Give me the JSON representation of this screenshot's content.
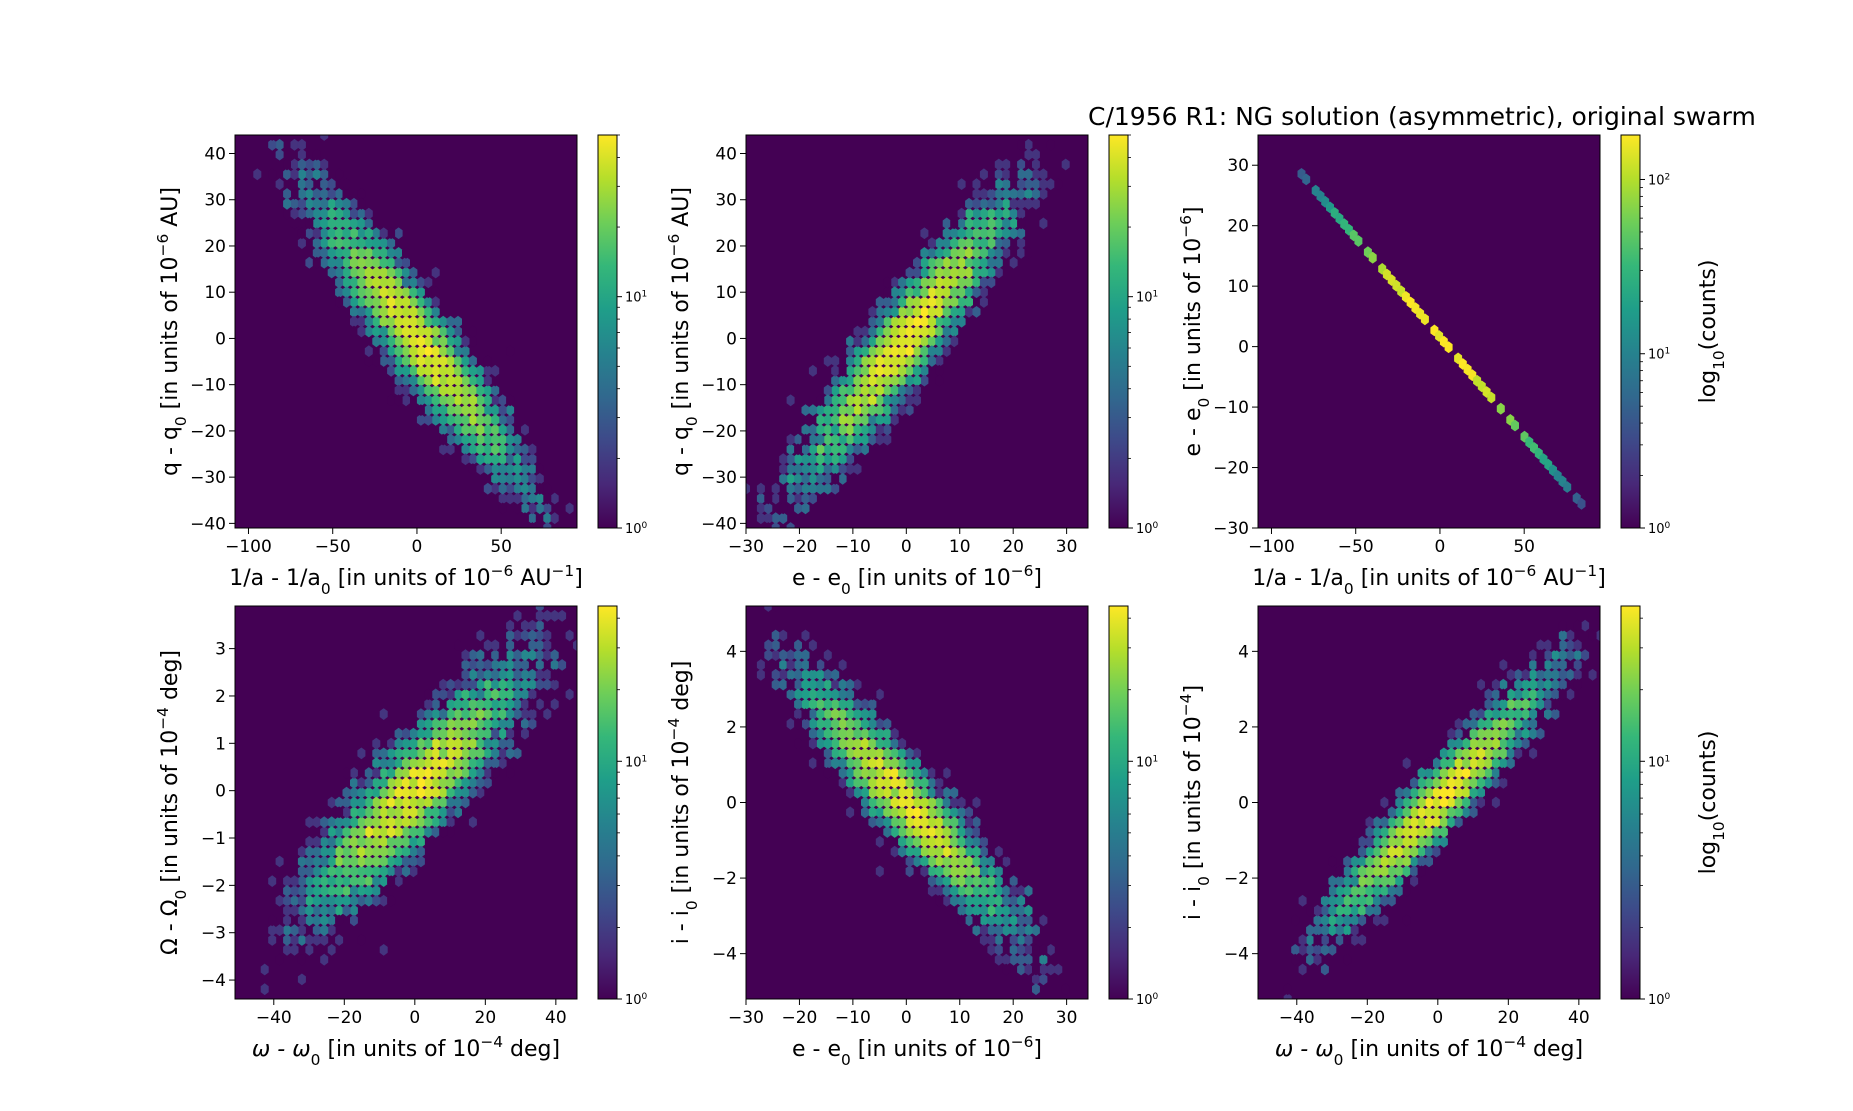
{
  "figure_title": "C/1956 R1:  NG solution (asymmetric), original swarm",
  "colors": {
    "background": "#440154",
    "colormap": [
      "#440154",
      "#482878",
      "#3e4989",
      "#31688e",
      "#26828e",
      "#1f9e89",
      "#35b779",
      "#6ece58",
      "#b5de2b",
      "#fde725"
    ]
  },
  "chart_data": [
    {
      "type": "heatmap",
      "subtype": "hexbin",
      "xlabel": "1/a - 1/a0 [in units of 10^-6 AU^-1]",
      "ylabel": "q - q0 [in units of 10^-6 AU]",
      "xlim": [
        -108,
        95
      ],
      "ylim": [
        -41,
        44
      ],
      "xticks": [
        -100,
        -50,
        0,
        50
      ],
      "xtick_labels": [
        "−100",
        "−50",
        "0",
        "50"
      ],
      "yticks": [
        -40,
        -30,
        -20,
        -10,
        0,
        10,
        20,
        30,
        40
      ],
      "ytick_labels": [
        "−40",
        "−30",
        "−20",
        "−10",
        "0",
        "10",
        "20",
        "30",
        "40"
      ],
      "correlation": -0.93,
      "center": [
        0,
        0
      ],
      "sd": [
        28,
        14
      ],
      "colorbar": {
        "scale": "log",
        "range": [
          1,
          50
        ],
        "ticks": [
          1,
          10
        ],
        "tick_labels": [
          "10^0",
          "10^1"
        ],
        "label": ""
      }
    },
    {
      "type": "heatmap",
      "subtype": "hexbin",
      "xlabel": "e - e0 [in units of 10^-6]",
      "ylabel": "q - q0 [in units of 10^-6 AU]",
      "xlim": [
        -30,
        34
      ],
      "ylim": [
        -41,
        44
      ],
      "xticks": [
        -30,
        -20,
        -10,
        0,
        10,
        20,
        30
      ],
      "xtick_labels": [
        "−30",
        "−20",
        "−10",
        "0",
        "10",
        "20",
        "30"
      ],
      "yticks": [
        -40,
        -30,
        -20,
        -10,
        0,
        10,
        20,
        30,
        40
      ],
      "ytick_labels": [
        "−40",
        "−30",
        "−20",
        "−10",
        "0",
        "10",
        "20",
        "30",
        "40"
      ],
      "correlation": 0.93,
      "center": [
        0,
        0
      ],
      "sd": [
        9,
        14
      ],
      "colorbar": {
        "scale": "log",
        "range": [
          1,
          50
        ],
        "ticks": [
          1,
          10
        ],
        "tick_labels": [
          "10^0",
          "10^1"
        ],
        "label": ""
      }
    },
    {
      "type": "heatmap",
      "subtype": "hexbin",
      "xlabel": "1/a - 1/a0 [in units of 10^-6 AU^-1]",
      "ylabel": "e - e0 [in units of 10^-6]",
      "xlim": [
        -108,
        95
      ],
      "ylim": [
        -30,
        35
      ],
      "xticks": [
        -100,
        -50,
        0,
        50
      ],
      "xtick_labels": [
        "−100",
        "−50",
        "0",
        "50"
      ],
      "yticks": [
        -30,
        -20,
        -10,
        0,
        10,
        20,
        30
      ],
      "ytick_labels": [
        "−30",
        "−20",
        "−10",
        "0",
        "10",
        "20",
        "30"
      ],
      "correlation": -1.0,
      "center": [
        0,
        0
      ],
      "sd": [
        28,
        9
      ],
      "line": {
        "x": [
          -85,
          84
        ],
        "y": [
          29.5,
          -26
        ]
      },
      "colorbar": {
        "scale": "log",
        "range": [
          1,
          180
        ],
        "ticks": [
          1,
          10,
          100
        ],
        "tick_labels": [
          "10^0",
          "10^1",
          "10^2"
        ],
        "label": "log10(counts)"
      }
    },
    {
      "type": "heatmap",
      "subtype": "hexbin",
      "xlabel": "ω - ω0 [in units of 10^-4 deg]",
      "ylabel": "Ω - Ω0 [in units of 10^-4 deg]",
      "xlim": [
        -51,
        46
      ],
      "ylim": [
        -4.4,
        3.9
      ],
      "xticks": [
        -40,
        -20,
        0,
        20,
        40
      ],
      "xtick_labels": [
        "−40",
        "−20",
        "0",
        "20",
        "40"
      ],
      "yticks": [
        -4,
        -3,
        -2,
        -1,
        0,
        1,
        2,
        3
      ],
      "ytick_labels": [
        "−4",
        "−3",
        "−2",
        "−1",
        "0",
        "1",
        "2",
        "3"
      ],
      "correlation": 0.88,
      "center": [
        0,
        0
      ],
      "sd": [
        14,
        1.2
      ],
      "colorbar": {
        "scale": "log",
        "range": [
          1,
          45
        ],
        "ticks": [
          1,
          10
        ],
        "tick_labels": [
          "10^0",
          "10^1"
        ],
        "label": ""
      }
    },
    {
      "type": "heatmap",
      "subtype": "hexbin",
      "xlabel": "e - e0 [in units of 10^-6]",
      "ylabel": "i - i0 [in units of 10^-4 deg]",
      "xlim": [
        -30,
        34
      ],
      "ylim": [
        -5.2,
        5.2
      ],
      "xticks": [
        -30,
        -20,
        -10,
        0,
        10,
        20,
        30
      ],
      "xtick_labels": [
        "−30",
        "−20",
        "−10",
        "0",
        "10",
        "20",
        "30"
      ],
      "yticks": [
        -4,
        -2,
        0,
        2,
        4
      ],
      "ytick_labels": [
        "−4",
        "−2",
        "0",
        "2",
        "4"
      ],
      "correlation": -0.93,
      "center": [
        0,
        0
      ],
      "sd": [
        9,
        1.5
      ],
      "colorbar": {
        "scale": "log",
        "range": [
          1,
          45
        ],
        "ticks": [
          1,
          10
        ],
        "tick_labels": [
          "10^0",
          "10^1"
        ],
        "label": ""
      }
    },
    {
      "type": "heatmap",
      "subtype": "hexbin",
      "xlabel": "ω - ω0 [in units of 10^-4 deg]",
      "ylabel": "i - i0 [in units of 10^-4]",
      "xlim": [
        -51,
        46
      ],
      "ylim": [
        -5.2,
        5.2
      ],
      "xticks": [
        -40,
        -20,
        0,
        20,
        40
      ],
      "xtick_labels": [
        "−40",
        "−20",
        "0",
        "20",
        "40"
      ],
      "yticks": [
        -4,
        -2,
        0,
        2,
        4
      ],
      "ytick_labels": [
        "−4",
        "−2",
        "0",
        "2",
        "4"
      ],
      "correlation": 0.95,
      "center": [
        0,
        0
      ],
      "sd": [
        14,
        1.5
      ],
      "colorbar": {
        "scale": "log",
        "range": [
          1,
          45
        ],
        "ticks": [
          1,
          10
        ],
        "tick_labels": [
          "10^0",
          "10^1"
        ],
        "label": "log10(counts)"
      }
    }
  ],
  "axis_label_parts": [
    {
      "x": [
        [
          "1/a - 1/a",
          ""
        ],
        [
          "0",
          "sub"
        ],
        [
          " [in units of 10",
          ""
        ],
        [
          "−6",
          "sup"
        ],
        [
          " AU",
          ""
        ],
        [
          "−1",
          "sup"
        ],
        [
          "]",
          ""
        ]
      ],
      "y": [
        [
          "q - q",
          ""
        ],
        [
          "0",
          "sub"
        ],
        [
          " [in units of 10",
          ""
        ],
        [
          "−6",
          "sup"
        ],
        [
          " AU]",
          ""
        ]
      ]
    },
    {
      "x": [
        [
          "e - e",
          ""
        ],
        [
          "0",
          "sub"
        ],
        [
          " [in units of 10",
          ""
        ],
        [
          "−6",
          "sup"
        ],
        [
          "]",
          ""
        ]
      ],
      "y": [
        [
          "q - q",
          ""
        ],
        [
          "0",
          "sub"
        ],
        [
          " [in units of 10",
          ""
        ],
        [
          "−6",
          "sup"
        ],
        [
          " AU]",
          ""
        ]
      ]
    },
    {
      "x": [
        [
          "1/a - 1/a",
          ""
        ],
        [
          "0",
          "sub"
        ],
        [
          " [in units of 10",
          ""
        ],
        [
          "−6",
          "sup"
        ],
        [
          " AU",
          ""
        ],
        [
          "−1",
          "sup"
        ],
        [
          "]",
          ""
        ]
      ],
      "y": [
        [
          "e - e",
          ""
        ],
        [
          "0",
          "sub"
        ],
        [
          " [in units of 10",
          ""
        ],
        [
          "−6",
          "sup"
        ],
        [
          "]",
          ""
        ]
      ],
      "cb": [
        [
          "log",
          ""
        ],
        [
          "10",
          "sub"
        ],
        [
          "(counts)",
          ""
        ]
      ]
    },
    {
      "x": [
        [
          "ω - ω",
          "it"
        ],
        [
          "0",
          "sub"
        ],
        [
          " [in units of 10",
          ""
        ],
        [
          "−4",
          "sup"
        ],
        [
          " deg]",
          ""
        ]
      ],
      "y": [
        [
          "Ω - Ω",
          ""
        ],
        [
          "0",
          "sub"
        ],
        [
          " [in units of 10",
          ""
        ],
        [
          "−4",
          "sup"
        ],
        [
          " deg]",
          ""
        ]
      ]
    },
    {
      "x": [
        [
          "e - e",
          ""
        ],
        [
          "0",
          "sub"
        ],
        [
          " [in units of 10",
          ""
        ],
        [
          "−6",
          "sup"
        ],
        [
          "]",
          ""
        ]
      ],
      "y": [
        [
          "i - i",
          ""
        ],
        [
          "0",
          "sub"
        ],
        [
          " [in units of 10",
          ""
        ],
        [
          "−4",
          "sup"
        ],
        [
          " deg]",
          ""
        ]
      ]
    },
    {
      "x": [
        [
          "ω - ω",
          "it"
        ],
        [
          "0",
          "sub"
        ],
        [
          " [in units of 10",
          ""
        ],
        [
          "−4",
          "sup"
        ],
        [
          " deg]",
          ""
        ]
      ],
      "y": [
        [
          "i - i",
          ""
        ],
        [
          "0",
          "sub"
        ],
        [
          " [in units of 10",
          ""
        ],
        [
          "−4",
          "sup"
        ],
        [
          "]",
          ""
        ]
      ],
      "cb": [
        [
          "log",
          ""
        ],
        [
          "10",
          "sub"
        ],
        [
          "(counts)",
          ""
        ]
      ]
    }
  ]
}
